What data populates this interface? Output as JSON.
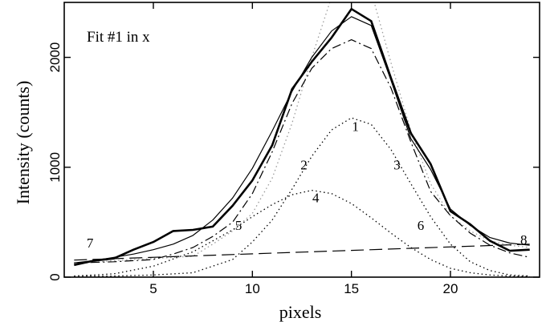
{
  "chart_data": {
    "type": "line",
    "title": "Fit #1 in x",
    "xlabel": "pixels",
    "ylabel": "Intensity (counts)",
    "xlim": [
      0.5,
      24.5
    ],
    "ylim": [
      0,
      2500
    ],
    "xticks": [
      5,
      10,
      15,
      20
    ],
    "yticks": [
      0,
      1000,
      2000
    ],
    "grid": false,
    "legend": "none",
    "annotations": [
      {
        "text": "1",
        "x": 15.2,
        "y": 1330
      },
      {
        "text": "2",
        "x": 12.6,
        "y": 980
      },
      {
        "text": "3",
        "x": 17.3,
        "y": 980
      },
      {
        "text": "4",
        "x": 13.2,
        "y": 680
      },
      {
        "text": "5",
        "x": 9.3,
        "y": 430
      },
      {
        "text": "6",
        "x": 18.5,
        "y": 430
      },
      {
        "text": "7",
        "x": 1.8,
        "y": 270
      },
      {
        "text": "8",
        "x": 23.7,
        "y": 300
      }
    ],
    "series": [
      {
        "id": "data",
        "style": "thick-solid",
        "color": "#000000",
        "x": [
          1,
          2,
          3,
          4,
          5,
          6,
          7,
          8,
          9,
          10,
          11,
          12,
          13,
          14,
          15,
          16,
          17,
          18,
          19,
          20,
          21,
          22,
          23,
          24
        ],
        "y": [
          110,
          150,
          170,
          250,
          320,
          420,
          430,
          460,
          650,
          880,
          1200,
          1710,
          1960,
          2180,
          2440,
          2330,
          1810,
          1310,
          1030,
          600,
          480,
          330,
          240,
          250
        ]
      },
      {
        "id": "model-total",
        "style": "thin-solid",
        "color": "#000000",
        "x": [
          1,
          2,
          3,
          4,
          5,
          6,
          7,
          8,
          9,
          10,
          11,
          12,
          13,
          14,
          15,
          16,
          17,
          18,
          19,
          20,
          21,
          22,
          23,
          24
        ],
        "y": [
          130,
          150,
          180,
          210,
          250,
          300,
          380,
          520,
          720,
          990,
          1330,
          1690,
          2000,
          2240,
          2370,
          2290,
          1790,
          1260,
          980,
          620,
          470,
          360,
          310,
          290
        ]
      },
      {
        "id": "model-gray",
        "style": "dotted",
        "color": "#9a9a9a",
        "x": [
          1,
          3,
          5,
          7,
          8,
          9,
          10,
          11,
          12,
          13,
          14,
          15,
          16,
          17,
          18,
          19,
          20,
          21,
          22,
          23,
          24
        ],
        "y": [
          120,
          150,
          170,
          190,
          300,
          420,
          580,
          900,
          1400,
          2000,
          2550,
          2750,
          2600,
          1950,
          1330,
          850,
          560,
          420,
          330,
          290,
          270
        ]
      },
      {
        "id": "model-dashdot",
        "style": "dash-dot",
        "color": "#000000",
        "x": [
          1,
          3,
          5,
          6,
          7,
          8,
          9,
          10,
          11,
          12,
          13,
          14,
          15,
          16,
          17,
          18,
          19,
          20,
          21,
          22,
          23,
          24
        ],
        "y": [
          130,
          140,
          160,
          210,
          270,
          370,
          500,
          760,
          1140,
          1580,
          1900,
          2080,
          2160,
          2080,
          1720,
          1230,
          780,
          560,
          400,
          290,
          220,
          180
        ]
      },
      {
        "id": "component-1",
        "style": "dotted",
        "color": "#000000",
        "x": [
          1,
          3,
          5,
          7,
          9,
          10,
          11,
          12,
          13,
          14,
          15,
          16,
          17,
          18,
          19,
          20,
          21,
          22,
          23,
          24
        ],
        "y": [
          10,
          10,
          20,
          40,
          160,
          320,
          520,
          800,
          1100,
          1340,
          1450,
          1390,
          1160,
          850,
          550,
          300,
          140,
          60,
          20,
          10
        ]
      },
      {
        "id": "component-2-4",
        "style": "dotted",
        "color": "#000000",
        "x": [
          1,
          3,
          5,
          7,
          9,
          10,
          11,
          12,
          13,
          14,
          15,
          16,
          17,
          18,
          19,
          20,
          21,
          22,
          23,
          24
        ],
        "y": [
          10,
          30,
          100,
          230,
          430,
          550,
          660,
          750,
          790,
          760,
          670,
          540,
          400,
          270,
          160,
          80,
          40,
          20,
          10,
          5
        ]
      },
      {
        "id": "component-baseline",
        "style": "long-dash",
        "color": "#000000",
        "x": [
          1,
          24
        ],
        "y": [
          155,
          300
        ]
      }
    ]
  }
}
